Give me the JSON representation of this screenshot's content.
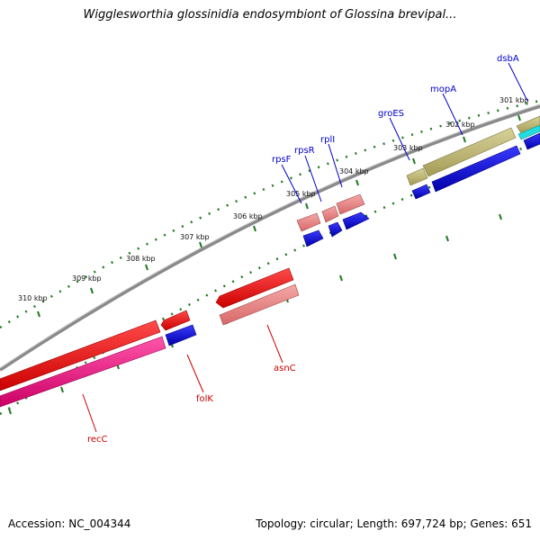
{
  "title": "Wigglesworthia glossinidia endosymbiont of Glossina brevipal...",
  "ticks": [
    "301 kbp",
    "302 kbp",
    "303 kbp",
    "304 kbp",
    "305 kbp",
    "306 kbp",
    "307 kbp",
    "308 kbp",
    "309 kbp",
    "310 kbp"
  ],
  "genes": [
    {
      "name": "dsbA",
      "color": "#0000cc"
    },
    {
      "name": "mopA",
      "color": "#0000cc"
    },
    {
      "name": "groES",
      "color": "#0000cc"
    },
    {
      "name": "rplI",
      "color": "#0000cc"
    },
    {
      "name": "rpsR",
      "color": "#0000cc"
    },
    {
      "name": "rpsF",
      "color": "#0000cc"
    },
    {
      "name": "asnC",
      "color": "#cc0000"
    },
    {
      "name": "folK",
      "color": "#cc0000"
    },
    {
      "name": "recC",
      "color": "#cc0000"
    }
  ],
  "footer": {
    "accession": "Accession: NC_004344",
    "summary": "Topology: circular; Length: 697,724 bp; Genes: 651"
  },
  "colors": {
    "backbone": "#8c8c8c",
    "tick": "#1e7a1e",
    "forward_rrna_like": "#b5ad6a",
    "forward_red": "#ee1111",
    "forward_pink": "#e88080",
    "cds_blue": "#1111dd",
    "cds_cyan": "#11dddd",
    "reverse_magenta": "#ee1188"
  }
}
